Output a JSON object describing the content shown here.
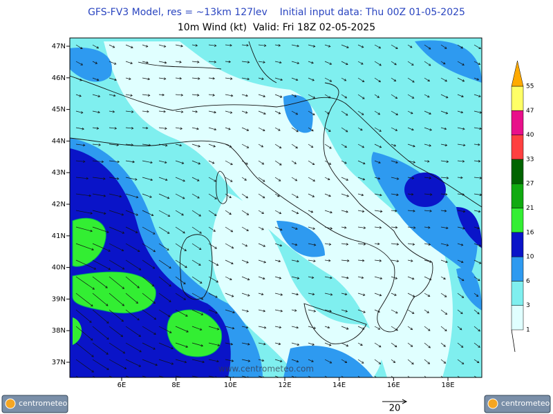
{
  "header": {
    "title": "GFS-FV3 Model, res = ~13km 127lev    Initial input data: Thu 00Z 01-05-2025",
    "subtitle": "10m Wind (kt)  Valid: Fri 18Z 02-05-2025"
  },
  "map": {
    "lat_labels": [
      "47N",
      "46N",
      "45N",
      "44N",
      "43N",
      "42N",
      "41N",
      "40N",
      "39N",
      "38N",
      "37N"
    ],
    "lon_labels": [
      "6E",
      "8E",
      "10E",
      "12E",
      "14E",
      "16E",
      "18E"
    ],
    "watermark": "www.centrometeo.com"
  },
  "legend": {
    "levels": [
      1,
      3,
      6,
      10,
      16,
      21,
      27,
      33,
      40,
      47,
      55
    ],
    "colors": [
      "#e0ffff",
      "#7fefef",
      "#2e9af0",
      "#0a14c8",
      "#33ee33",
      "#10aa10",
      "#006400",
      "#ff4040",
      "#e8108a",
      "#ffff66",
      "#ffaa00"
    ]
  },
  "reference": {
    "value_label": "20"
  },
  "logos": {
    "left": "centrometeo",
    "right": "centrometeo"
  }
}
